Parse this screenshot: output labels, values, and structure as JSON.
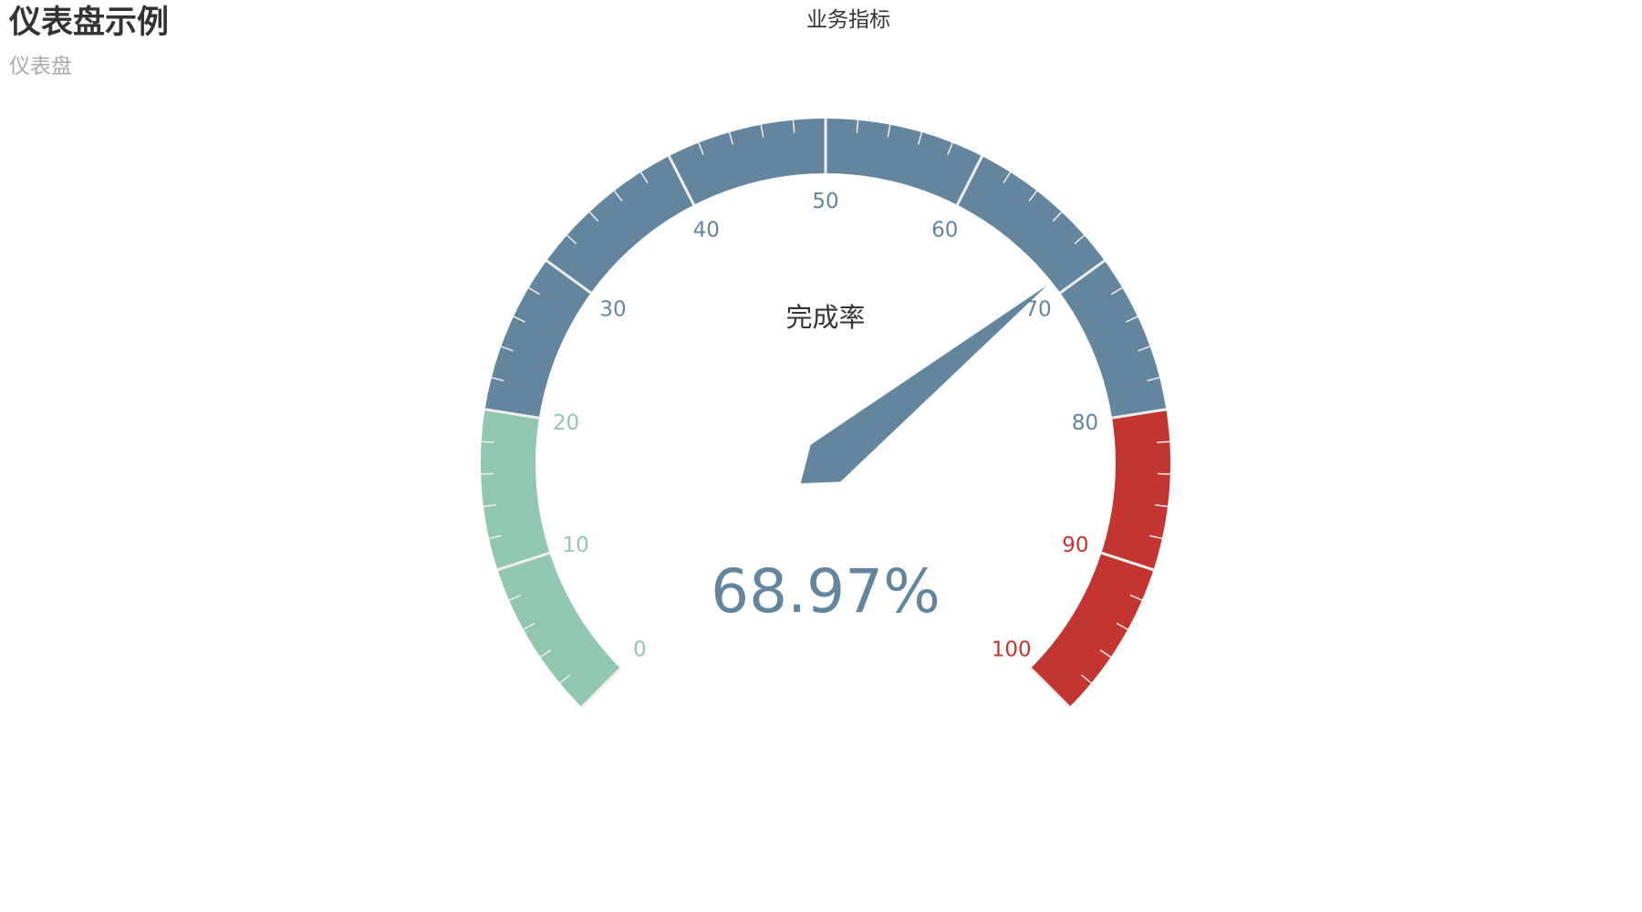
{
  "header": {
    "title": "仪表盘示例",
    "subtitle": "仪表盘"
  },
  "legend": {
    "label": "业务指标"
  },
  "chart_data": {
    "type": "gauge",
    "series_name": "业务指标",
    "name": "完成率",
    "value": 68.97,
    "value_text": "68.97%",
    "min": 0,
    "max": 100,
    "split_number": 10,
    "axis_labels": [
      "0",
      "10",
      "20",
      "30",
      "40",
      "50",
      "60",
      "70",
      "80",
      "90",
      "100"
    ],
    "color_bands": [
      {
        "to": 0.2,
        "color": "#91c7ae"
      },
      {
        "to": 0.8,
        "color": "#63869e"
      },
      {
        "to": 1.0,
        "color": "#c23531"
      }
    ],
    "pointer_color": "#63869e",
    "value_color": "#63869e"
  }
}
